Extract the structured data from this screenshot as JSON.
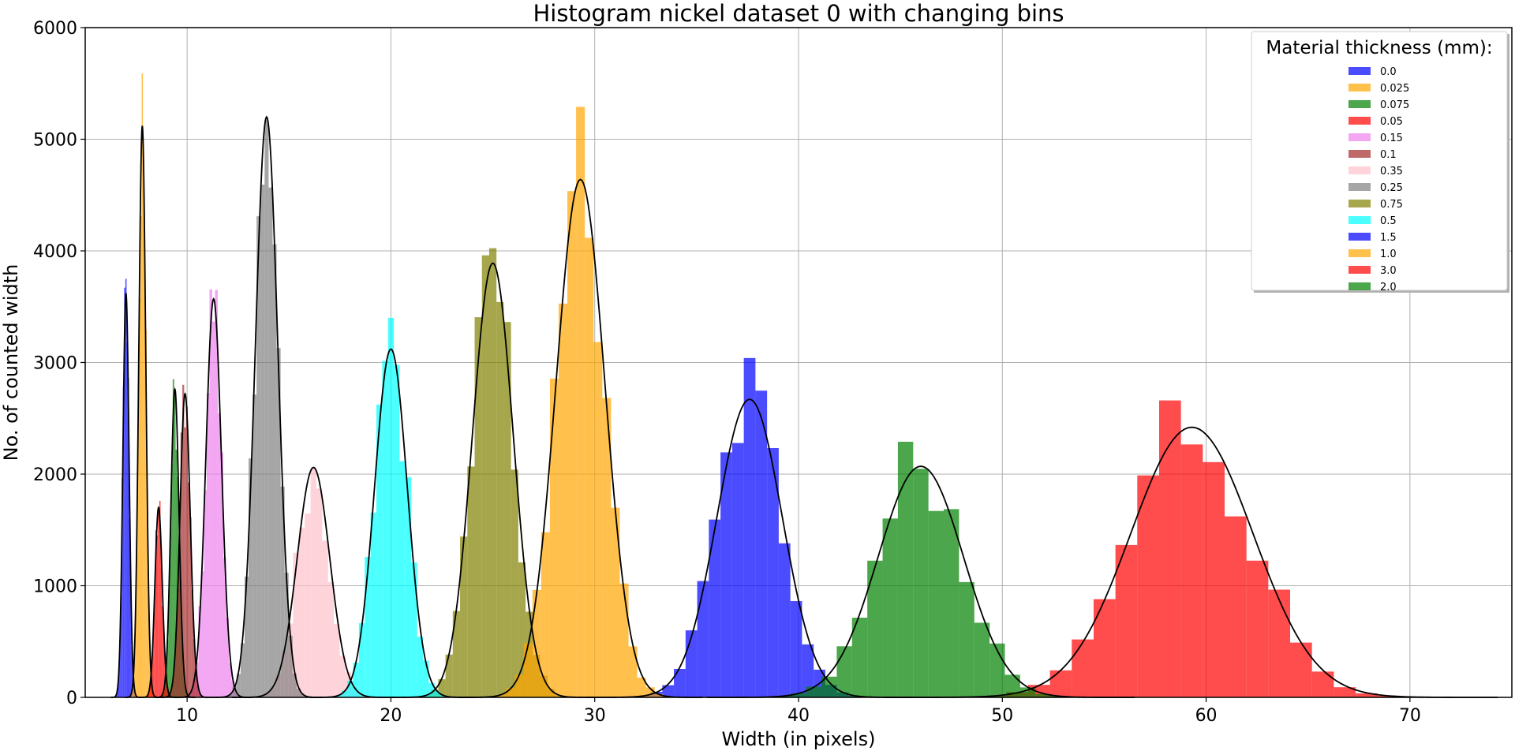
{
  "chart_data": {
    "type": "bar",
    "title": "Histogram nickel dataset 0 with changing bins",
    "xlabel": "Width (in pixels)",
    "ylabel": "No. of counted width",
    "xlim": [
      5,
      75
    ],
    "ylim": [
      0,
      6000
    ],
    "xticks": [
      10,
      20,
      30,
      40,
      50,
      60,
      70
    ],
    "yticks": [
      0,
      1000,
      2000,
      3000,
      4000,
      5000,
      6000
    ],
    "grid": true,
    "legend_title": "Material thickness (mm):",
    "legend_position": "upper-right",
    "series": [
      {
        "name": "0.0",
        "color": "#0000ff",
        "mean": 7.0,
        "sigma": 0.15,
        "fit_peak": 3620,
        "hist_peak": 3750
      },
      {
        "name": "0.025",
        "color": "#ffa500",
        "mean": 7.8,
        "sigma": 0.17,
        "fit_peak": 5120,
        "hist_peak": 5590
      },
      {
        "name": "0.075",
        "color": "#008000",
        "mean": 9.4,
        "sigma": 0.2,
        "fit_peak": 2760,
        "hist_peak": 2850
      },
      {
        "name": "0.05",
        "color": "#ff0000",
        "mean": 8.6,
        "sigma": 0.18,
        "fit_peak": 1700,
        "hist_peak": 1760
      },
      {
        "name": "0.15",
        "color": "#ee82ee",
        "mean": 11.3,
        "sigma": 0.38,
        "fit_peak": 3570,
        "hist_peak": 3650
      },
      {
        "name": "0.1",
        "color": "#a52a2a",
        "mean": 9.9,
        "sigma": 0.25,
        "fit_peak": 2720,
        "hist_peak": 2800
      },
      {
        "name": "0.35",
        "color": "#ffc0cb",
        "mean": 16.2,
        "sigma": 0.8,
        "fit_peak": 2060,
        "hist_peak": 2060
      },
      {
        "name": "0.25",
        "color": "#808080",
        "mean": 13.9,
        "sigma": 0.55,
        "fit_peak": 5200,
        "hist_peak": 5170
      },
      {
        "name": "0.75",
        "color": "#808000",
        "mean": 25.0,
        "sigma": 1.0,
        "fit_peak": 3890,
        "hist_peak": 3960
      },
      {
        "name": "0.5",
        "color": "#00ffff",
        "mean": 20.0,
        "sigma": 0.8,
        "fit_peak": 3120,
        "hist_peak": 3400
      },
      {
        "name": "1.5",
        "color": "#0000ff",
        "mean": 37.6,
        "sigma": 1.6,
        "fit_peak": 2670,
        "hist_peak": 3040
      },
      {
        "name": "1.0",
        "color": "#ffa500",
        "mean": 29.3,
        "sigma": 1.2,
        "fit_peak": 4640,
        "hist_peak": 5290
      },
      {
        "name": "3.0",
        "color": "#ff0000",
        "mean": 59.3,
        "sigma": 3.0,
        "fit_peak": 2420,
        "hist_peak": 2660
      },
      {
        "name": "2.0",
        "color": "#008000",
        "mean": 46.0,
        "sigma": 2.1,
        "fit_peak": 2070,
        "hist_peak": 2290
      }
    ]
  }
}
